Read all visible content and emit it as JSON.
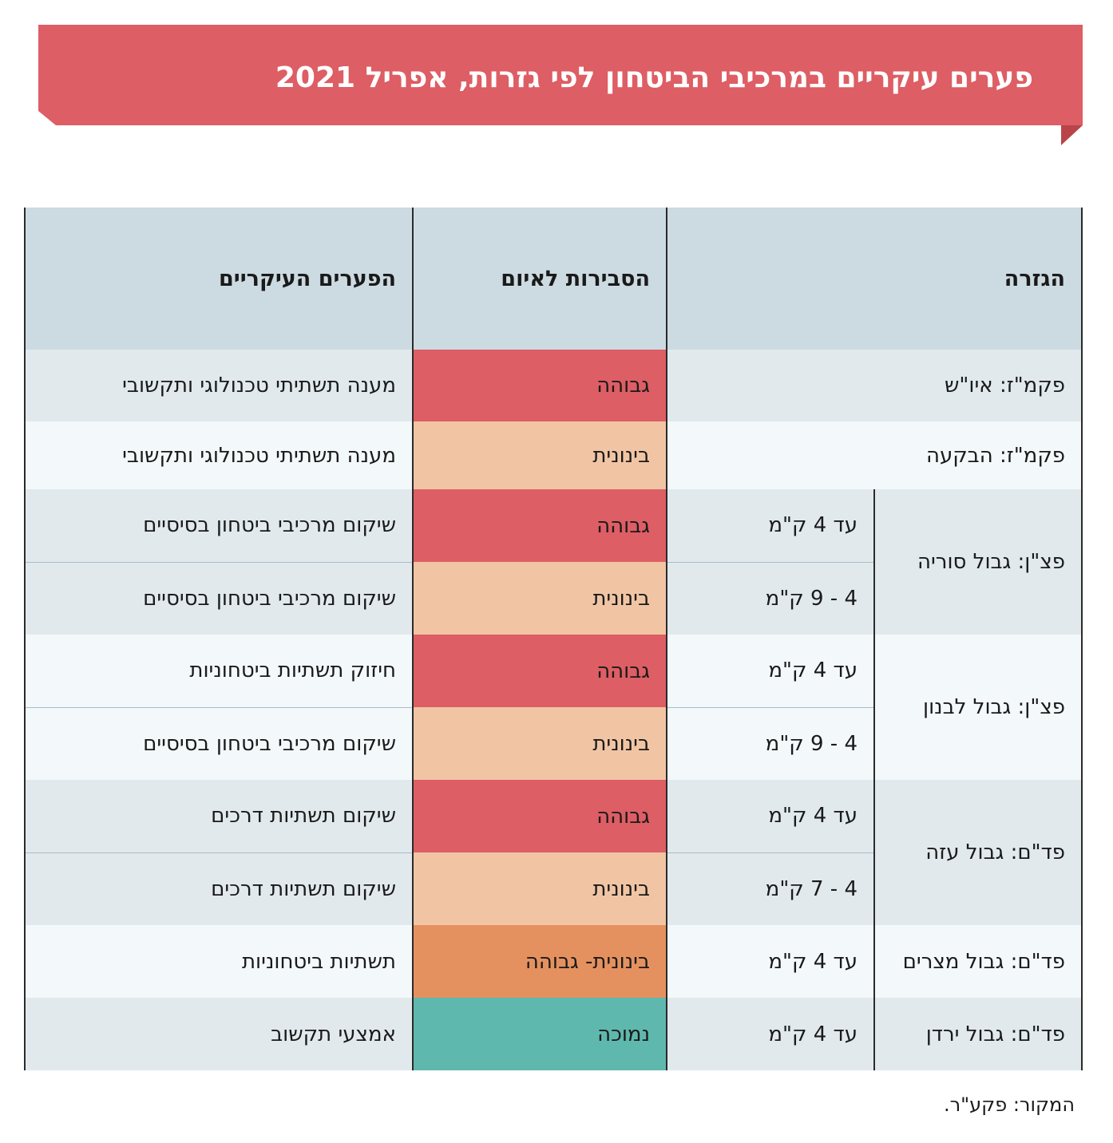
{
  "title": "פערים עיקריים במרכיבי הביטחון לפי גזרות, אפריל 2021",
  "headers": {
    "sector": "הגזרה",
    "probability": "הסבירות לאיום",
    "gaps": "הפערים העיקריים"
  },
  "rows": [
    {
      "sector": "פקמ\"ז: איו\"ש",
      "distance": "",
      "probability": "גבוהה",
      "level": "high",
      "gap": "מענה תשתיתי טכנולוגי ותקשובי"
    },
    {
      "sector": "פקמ\"ז: הבקעה",
      "distance": "",
      "probability": "בינונית",
      "level": "medium",
      "gap": "מענה תשתיתי טכנולוגי ותקשובי"
    },
    {
      "sector": "פצ\"ן: גבול סוריה",
      "distance": "עד 4 ק\"מ",
      "probability": "גבוהה",
      "level": "high",
      "gap": "שיקום מרכיבי ביטחון בסיסיים"
    },
    {
      "sector": "",
      "distance": "4 - 9 ק\"מ",
      "probability": "בינונית",
      "level": "medium",
      "gap": "שיקום מרכיבי ביטחון בסיסיים"
    },
    {
      "sector": "פצ\"ן: גבול לבנון",
      "distance": "עד 4 ק\"מ",
      "probability": "גבוהה",
      "level": "high",
      "gap": "חיזוק תשתיות ביטחוניות"
    },
    {
      "sector": "",
      "distance": "4 - 9 ק\"מ",
      "probability": "בינונית",
      "level": "medium",
      "gap": "שיקום מרכיבי ביטחון בסיסיים"
    },
    {
      "sector": "פד\"ם: גבול עזה",
      "distance": "עד 4 ק\"מ",
      "probability": "גבוהה",
      "level": "high",
      "gap": "שיקום תשתיות דרכים"
    },
    {
      "sector": "",
      "distance": "4 - 7 ק\"מ",
      "probability": "בינונית",
      "level": "medium",
      "gap": "שיקום תשתיות דרכים"
    },
    {
      "sector": "פד\"ם: גבול מצרים",
      "distance": "עד 4 ק\"מ",
      "probability": "בינונית- גבוהה",
      "level": "medium-high",
      "gap": "תשתיות ביטחוניות"
    },
    {
      "sector": "פד\"ם: גבול ירדן",
      "distance": "עד 4 ק\"מ",
      "probability": "נמוכה",
      "level": "low",
      "gap": "אמצעי תקשוב"
    }
  ],
  "colors": {
    "high": "#dd5e64",
    "medium": "#f1c5a4",
    "medium-high": "#e5915f",
    "low": "#5fb8ad",
    "header": "#ccdae2",
    "banner": "#dd5e64"
  },
  "source": "המקור: פקע\"ר."
}
